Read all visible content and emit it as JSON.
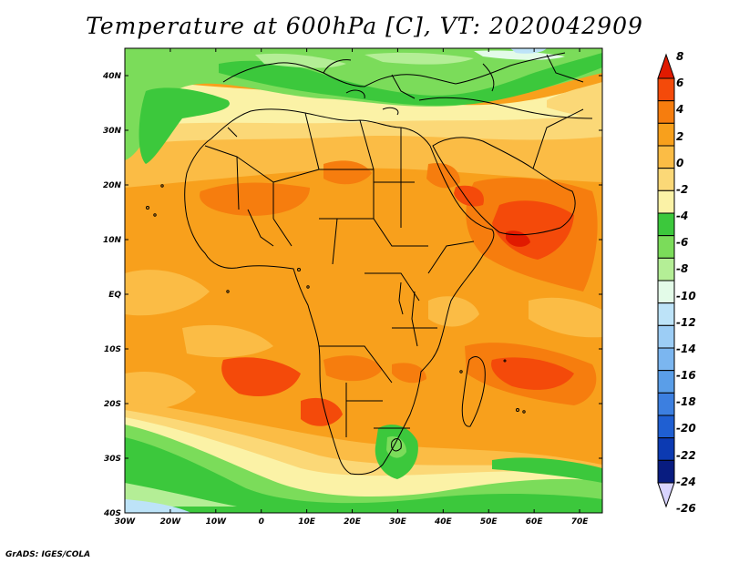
{
  "title": "Temperature at 600hPa [C], VT: 2020042909",
  "credit": "GrADS: IGES/COLA",
  "map": {
    "lon_range": [
      -30,
      75
    ],
    "lat_range": [
      -40,
      45
    ],
    "lon_ticks": [
      {
        "value": -30,
        "label": "30W"
      },
      {
        "value": -20,
        "label": "20W"
      },
      {
        "value": -10,
        "label": "10W"
      },
      {
        "value": 0,
        "label": "0"
      },
      {
        "value": 10,
        "label": "10E"
      },
      {
        "value": 20,
        "label": "20E"
      },
      {
        "value": 30,
        "label": "30E"
      },
      {
        "value": 40,
        "label": "40E"
      },
      {
        "value": 50,
        "label": "50E"
      },
      {
        "value": 60,
        "label": "60E"
      },
      {
        "value": 70,
        "label": "70E"
      }
    ],
    "lat_ticks": [
      {
        "value": 40,
        "label": "40N"
      },
      {
        "value": 30,
        "label": "30N"
      },
      {
        "value": 20,
        "label": "20N"
      },
      {
        "value": 10,
        "label": "10N"
      },
      {
        "value": 0,
        "label": "EQ"
      },
      {
        "value": -10,
        "label": "10S"
      },
      {
        "value": -20,
        "label": "20S"
      },
      {
        "value": -30,
        "label": "30S"
      },
      {
        "value": -40,
        "label": "40S"
      }
    ]
  },
  "colorbar": {
    "labels": [
      "8",
      "6",
      "4",
      "2",
      "0",
      "-2",
      "-4",
      "-6",
      "-8",
      "-10",
      "-12",
      "-14",
      "-16",
      "-18",
      "-20",
      "-22",
      "-24",
      "-26"
    ],
    "colors": [
      "#e11a00",
      "#f44a0a",
      "#f67d0e",
      "#f8a01c",
      "#fbbc45",
      "#fbd877",
      "#fbf2a6",
      "#3cc83c",
      "#7bdc5a",
      "#b4ee96",
      "#e3fbe8",
      "#bde3f8",
      "#9ccdf5",
      "#7bb6f0",
      "#5a9ee8",
      "#3c7fe0",
      "#1f5fd2",
      "#0c3ab2",
      "#081c80",
      "#d8d4ff"
    ]
  }
}
